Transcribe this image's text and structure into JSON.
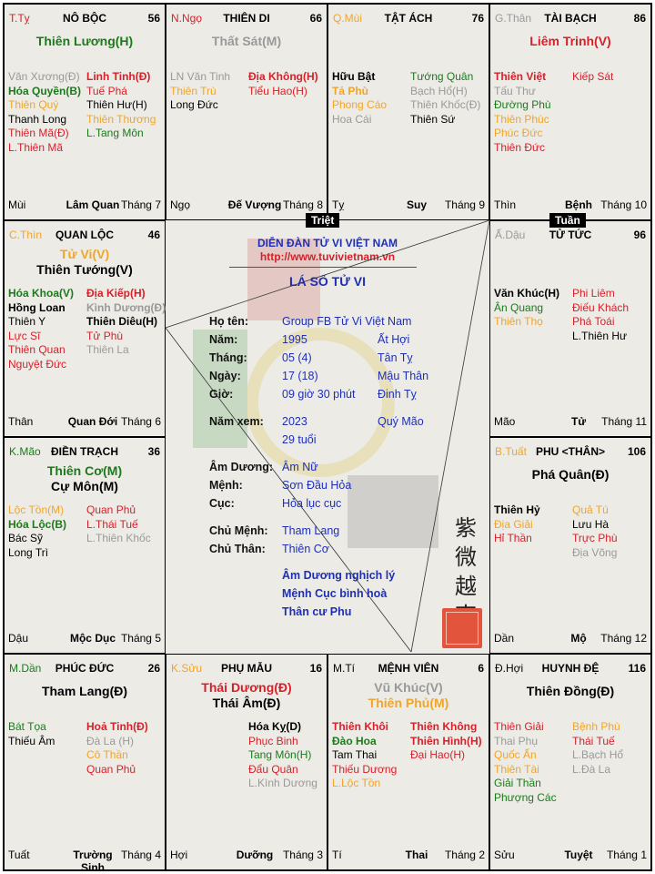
{
  "colors": {
    "red": "#d8202a",
    "green": "#1c7a1c",
    "orange": "#f0a52a",
    "gray": "#999999",
    "blue": "#1f2fb4",
    "background": "#ecebe6"
  },
  "markers": {
    "triet": "Triệt",
    "tuan": "Tuần"
  },
  "center": {
    "forum": "DIỄN ĐÀN TỬ VI VIỆT NAM",
    "url": "http://www.tuvivietnam.vn",
    "title": "LÁ SỐ TỬ VI",
    "rows": [
      {
        "label": "Họ tên:",
        "value": "Group FB Tử Vi Việt Nam",
        "extra": ""
      },
      {
        "label": "Năm:",
        "value": "1995",
        "extra": "Ất Hợi"
      },
      {
        "label": "Tháng:",
        "value": "05 (4)",
        "extra": "Tân Tỵ"
      },
      {
        "label": "Ngày:",
        "value": "17 (18)",
        "extra": "Mậu Thân"
      },
      {
        "label": "Giờ:",
        "value": "09 giờ 30 phút",
        "extra": "Đinh Tỵ"
      },
      {
        "label": "Năm xem:",
        "value": "2023",
        "extra": "Quý Mão"
      },
      {
        "label": "",
        "value": "29 tuổi",
        "extra": ""
      },
      {
        "label": "Âm Dương:",
        "value": "Âm Nữ",
        "extra": ""
      },
      {
        "label": "Mệnh:",
        "value": "Sơn Đầu Hỏa",
        "extra": ""
      },
      {
        "label": "Cục:",
        "value": "Hỏa lục cục",
        "extra": ""
      },
      {
        "label": "Chủ Mệnh:",
        "value": "Tham Lang",
        "extra": ""
      },
      {
        "label": "Chủ Thân:",
        "value": "Thiên Cơ",
        "extra": ""
      }
    ],
    "notes": [
      "Âm Dương nghịch lý",
      "Mệnh Cục bình hoà",
      "Thân cư Phu"
    ],
    "seal_text": "紫微越南"
  },
  "cells": [
    {
      "can": "T.Tỵ",
      "canColor": "r",
      "name": "NÔ BỘC",
      "age": "56",
      "mains": [
        {
          "t": "Thiên Lương(H)",
          "c": "g"
        }
      ],
      "left": [
        {
          "t": "Văn Xương(Đ)",
          "c": "x"
        },
        {
          "t": "Hóa Quyền(B)",
          "c": "g",
          "b": 1
        },
        {
          "t": "Thiên Quý",
          "c": "o"
        },
        {
          "t": "Thanh Long",
          "c": "k"
        },
        {
          "t": "Thiên Mã(Đ)",
          "c": "r"
        },
        {
          "t": "L.Thiên Mã",
          "c": "r"
        }
      ],
      "right": [
        {
          "t": "Linh Tinh(Đ)",
          "c": "r",
          "b": 1
        },
        {
          "t": "Tuế Phá",
          "c": "r"
        },
        {
          "t": "Thiên Hư(H)",
          "c": "k"
        },
        {
          "t": "Thiên Thương",
          "c": "o"
        },
        {
          "t": "L.Tang Môn",
          "c": "g"
        }
      ],
      "branch": "Mùi",
      "stage": "Lâm Quan",
      "month": "Tháng 7"
    },
    {
      "can": "N.Ngọ",
      "canColor": "r",
      "name": "THIÊN DI",
      "age": "66",
      "mains": [
        {
          "t": "Thất Sát(M)",
          "c": "x"
        }
      ],
      "left": [
        {
          "t": "LN Văn Tinh",
          "c": "x"
        },
        {
          "t": "Thiên Trù",
          "c": "o"
        },
        {
          "t": "Long Đức",
          "c": "k"
        }
      ],
      "right": [
        {
          "t": "Địa Không(H)",
          "c": "r",
          "b": 1
        },
        {
          "t": "Tiểu Hao(H)",
          "c": "r"
        }
      ],
      "branch": "Ngọ",
      "stage": "Đế Vượng",
      "month": "Tháng 8"
    },
    {
      "can": "Q.Mùi",
      "canColor": "o",
      "name": "TẬT ÁCH",
      "age": "76",
      "mains": [],
      "left": [
        {
          "t": "Hữu Bật",
          "c": "k",
          "b": 1
        },
        {
          "t": "Tả Phù",
          "c": "o",
          "b": 1
        },
        {
          "t": "Phong Cáo",
          "c": "o"
        },
        {
          "t": "Hoa Cái",
          "c": "x"
        }
      ],
      "right": [
        {
          "t": "Tướng Quân",
          "c": "g"
        },
        {
          "t": "Bạch Hổ(H)",
          "c": "x"
        },
        {
          "t": "Thiên Khốc(Đ)",
          "c": "x"
        },
        {
          "t": "Thiên Sứ",
          "c": "k"
        }
      ],
      "branch": "Tỵ",
      "stage": "Suy",
      "month": "Tháng 9"
    },
    {
      "can": "G.Thân",
      "canColor": "x",
      "name": "TÀI BẠCH",
      "age": "86",
      "mains": [
        {
          "t": "Liêm Trinh(V)",
          "c": "r"
        }
      ],
      "left": [
        {
          "t": "Thiên Việt",
          "c": "r",
          "b": 1
        },
        {
          "t": "Tấu Thư",
          "c": "x"
        },
        {
          "t": "Đường Phù",
          "c": "g"
        },
        {
          "t": "Thiên Phúc",
          "c": "o"
        },
        {
          "t": "Phúc Đức",
          "c": "o"
        },
        {
          "t": "Thiên Đức",
          "c": "r"
        }
      ],
      "right": [
        {
          "t": "Kiếp Sát",
          "c": "r"
        }
      ],
      "branch": "Thìn",
      "stage": "Bệnh",
      "month": "Tháng 10"
    },
    {
      "can": "C.Thìn",
      "canColor": "o",
      "name": "QUAN LỘC",
      "age": "46",
      "mains": [
        {
          "t": "Tử Vi(V)",
          "c": "o"
        },
        {
          "t": "Thiên Tướng(V)",
          "c": "k"
        }
      ],
      "left": [
        {
          "t": "Hóa Khoa(V)",
          "c": "g",
          "b": 1
        },
        {
          "t": "Hồng Loan",
          "c": "k",
          "b": 1
        },
        {
          "t": "Thiên Y",
          "c": "k"
        },
        {
          "t": "Lực Sĩ",
          "c": "r"
        },
        {
          "t": "Thiên Quan",
          "c": "r"
        },
        {
          "t": "Nguyệt Đức",
          "c": "r"
        }
      ],
      "right": [
        {
          "t": "Địa Kiếp(H)",
          "c": "r",
          "b": 1
        },
        {
          "t": "Kình Dương(Đ)",
          "c": "x",
          "b": 1
        },
        {
          "t": "Thiên Diêu(H)",
          "c": "k",
          "b": 1
        },
        {
          "t": "Tử Phù",
          "c": "r"
        },
        {
          "t": "Thiên La",
          "c": "x"
        }
      ],
      "branch": "Thân",
      "stage": "Quan Đới",
      "month": "Tháng 6"
    },
    {
      "can": "Ấ.Dậu",
      "canColor": "x",
      "name": "TỬ TỨC",
      "age": "96",
      "mains": [],
      "left": [
        {
          "t": "Văn Khúc(H)",
          "c": "k",
          "b": 1
        },
        {
          "t": "Ân Quang",
          "c": "g"
        },
        {
          "t": "Thiên Thọ",
          "c": "o"
        }
      ],
      "right": [
        {
          "t": "Phi Liêm",
          "c": "r"
        },
        {
          "t": "Điếu Khách",
          "c": "r"
        },
        {
          "t": "Phá Toái",
          "c": "r"
        },
        {
          "t": "L.Thiên Hư",
          "c": "k"
        }
      ],
      "branch": "Mão",
      "stage": "Tử",
      "month": "Tháng 11"
    },
    {
      "can": "K.Mão",
      "canColor": "g",
      "name": "ĐIỀN TRẠCH",
      "age": "36",
      "mains": [
        {
          "t": "Thiên Cơ(M)",
          "c": "g"
        },
        {
          "t": "Cự Môn(M)",
          "c": "k"
        }
      ],
      "left": [
        {
          "t": "Lộc Tồn(M)",
          "c": "o"
        },
        {
          "t": "Hóa Lộc(B)",
          "c": "g",
          "b": 1
        },
        {
          "t": "Bác Sỹ",
          "c": "k"
        },
        {
          "t": "Long Trì",
          "c": "k"
        }
      ],
      "right": [
        {
          "t": "Quan Phủ",
          "c": "r"
        },
        {
          "t": "L.Thái Tuế",
          "c": "r"
        },
        {
          "t": "L.Thiên Khốc",
          "c": "x"
        }
      ],
      "branch": "Dậu",
      "stage": "Mộc Dục",
      "month": "Tháng 5"
    },
    {
      "can": "B.Tuất",
      "canColor": "o",
      "name": "PHU <THÂN>",
      "age": "106",
      "mains": [
        {
          "t": "Phá Quân(Đ)",
          "c": "k"
        }
      ],
      "left": [
        {
          "t": "Thiên Hỷ",
          "c": "k",
          "b": 1
        },
        {
          "t": "Địa Giải",
          "c": "o"
        },
        {
          "t": "Hỉ Thần",
          "c": "r"
        }
      ],
      "right": [
        {
          "t": "Quả Tú",
          "c": "o"
        },
        {
          "t": "Lưu Hà",
          "c": "k"
        },
        {
          "t": "Trực Phù",
          "c": "r"
        },
        {
          "t": "Địa Võng",
          "c": "x"
        }
      ],
      "branch": "Dần",
      "stage": "Mộ",
      "month": "Tháng 12"
    },
    {
      "can": "M.Dần",
      "canColor": "g",
      "name": "PHÚC ĐỨC",
      "age": "26",
      "mains": [
        {
          "t": "Tham Lang(Đ)",
          "c": "k"
        }
      ],
      "left": [
        {
          "t": "Bát Tọa",
          "c": "g"
        },
        {
          "t": "Thiếu Âm",
          "c": "k"
        }
      ],
      "right": [
        {
          "t": "Hoả Tinh(Đ)",
          "c": "r",
          "b": 1
        },
        {
          "t": "Đà La (H)",
          "c": "x"
        },
        {
          "t": "Cô Thần",
          "c": "o"
        },
        {
          "t": "Quan Phủ",
          "c": "r"
        }
      ],
      "branch": "Tuất",
      "stage": "Trường Sinh",
      "month": "Tháng 4"
    },
    {
      "can": "K.Sửu",
      "canColor": "o",
      "name": "PHỤ MẪU",
      "age": "16",
      "mains": [
        {
          "t": "Thái Dương(Đ)",
          "c": "r"
        },
        {
          "t": "Thái Âm(Đ)",
          "c": "k"
        }
      ],
      "left": [],
      "right": [
        {
          "t": "Hóa Kỵ(D)",
          "c": "k",
          "b": 1
        },
        {
          "t": "Phục Binh",
          "c": "r"
        },
        {
          "t": "Tang Môn(H)",
          "c": "g"
        },
        {
          "t": "Đẩu Quân",
          "c": "r"
        },
        {
          "t": "L.Kình Dương",
          "c": "x"
        }
      ],
      "branch": "Hợi",
      "stage": "Dưỡng",
      "month": "Tháng 3"
    },
    {
      "can": "M.Tí",
      "canColor": "k",
      "name": "MỆNH VIÊN",
      "age": "6",
      "mains": [
        {
          "t": "Vũ Khúc(V)",
          "c": "x"
        },
        {
          "t": "Thiên Phủ(M)",
          "c": "o"
        }
      ],
      "left": [
        {
          "t": "Thiên Khôi",
          "c": "r",
          "b": 1
        },
        {
          "t": "Đào Hoa",
          "c": "g",
          "b": 1
        },
        {
          "t": "Tam Thai",
          "c": "k"
        },
        {
          "t": "Thiếu Dương",
          "c": "r"
        },
        {
          "t": "L.Lộc Tồn",
          "c": "o"
        }
      ],
      "right": [
        {
          "t": "Thiên Không",
          "c": "r",
          "b": 1
        },
        {
          "t": "Thiên Hình(H)",
          "c": "r",
          "b": 1
        },
        {
          "t": "Đại Hao(H)",
          "c": "r"
        }
      ],
      "branch": "Tí",
      "stage": "Thai",
      "month": "Tháng 2"
    },
    {
      "can": "Đ.Hợi",
      "canColor": "k",
      "name": "HUYNH ĐỆ",
      "age": "116",
      "mains": [
        {
          "t": "Thiên Đồng(Đ)",
          "c": "k"
        }
      ],
      "left": [
        {
          "t": "Thiên Giải",
          "c": "r"
        },
        {
          "t": "Thai Phụ",
          "c": "x"
        },
        {
          "t": "Quốc Ấn",
          "c": "o"
        },
        {
          "t": "Thiên Tài",
          "c": "o"
        },
        {
          "t": "Giải Thần",
          "c": "g"
        },
        {
          "t": "Phượng Các",
          "c": "g"
        }
      ],
      "right": [
        {
          "t": "Bệnh Phù",
          "c": "o"
        },
        {
          "t": "Thái Tuế",
          "c": "r"
        },
        {
          "t": "L.Bạch Hổ",
          "c": "x"
        },
        {
          "t": "L.Đà La",
          "c": "x"
        }
      ],
      "branch": "Sửu",
      "stage": "Tuyệt",
      "month": "Tháng 1"
    }
  ]
}
